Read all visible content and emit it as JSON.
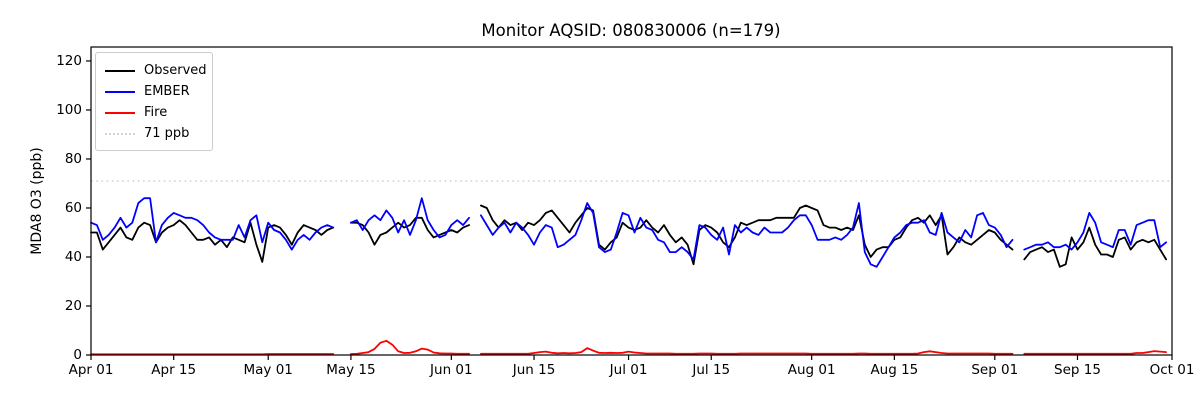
{
  "chart_data": {
    "type": "line",
    "title": "Monitor AQSID: 080830006 (n=179)",
    "xlabel": "",
    "ylabel": "MDA8 O3 (ppb)",
    "ylim": [
      0,
      125.7
    ],
    "yticks": [
      0,
      20,
      40,
      60,
      80,
      100,
      120
    ],
    "xticks": [
      {
        "label": "Apr 01",
        "day": 0
      },
      {
        "label": "Apr 15",
        "day": 14
      },
      {
        "label": "May 01",
        "day": 30
      },
      {
        "label": "May 15",
        "day": 44
      },
      {
        "label": "Jun 01",
        "day": 61
      },
      {
        "label": "Jun 15",
        "day": 75
      },
      {
        "label": "Jul 01",
        "day": 91
      },
      {
        "label": "Jul 15",
        "day": 105
      },
      {
        "label": "Aug 01",
        "day": 122
      },
      {
        "label": "Aug 15",
        "day": 136
      },
      {
        "label": "Sep 01",
        "day": 153
      },
      {
        "label": "Sep 15",
        "day": 167
      },
      {
        "label": "Oct 01",
        "day": 183
      }
    ],
    "x_start": "Apr 01",
    "x_end": "Oct 01",
    "frequency": "daily",
    "n_days": 183,
    "grid": false,
    "legend_position": "upper left",
    "threshold": {
      "label": "71 ppb",
      "value": 71,
      "color": "#d3d3d3",
      "style": "dotted"
    },
    "series": [
      {
        "name": "Observed",
        "color": "#000000",
        "values": [
          50,
          50,
          43,
          46,
          49,
          52,
          48,
          47,
          52,
          54,
          53,
          46,
          50,
          52,
          53,
          55,
          53,
          50,
          47,
          47,
          48,
          45,
          47,
          44,
          48,
          47,
          46,
          54,
          45,
          38,
          52,
          53,
          52,
          49,
          45,
          50,
          53,
          52,
          51,
          49,
          51,
          52,
          null,
          null,
          54,
          54,
          53,
          50,
          45,
          49,
          50,
          52,
          54,
          52,
          53,
          56,
          56,
          51,
          48,
          49,
          50,
          51,
          50,
          52,
          53,
          null,
          61,
          60,
          55,
          52,
          55,
          53,
          54,
          51,
          54,
          53,
          55,
          58,
          59,
          56,
          53,
          50,
          54,
          57,
          60,
          59,
          45,
          43,
          46,
          48,
          54,
          52,
          51,
          52,
          55,
          52,
          50,
          53,
          49,
          46,
          48,
          45,
          37,
          51,
          53,
          52,
          50,
          46,
          44,
          48,
          54,
          53,
          54,
          55,
          55,
          55,
          56,
          56,
          56,
          56,
          60,
          61,
          60,
          59,
          53,
          52,
          52,
          51,
          52,
          51,
          57,
          45,
          40,
          43,
          44,
          44,
          47,
          48,
          52,
          55,
          56,
          54,
          57,
          53,
          57,
          41,
          44,
          48,
          46,
          45,
          47,
          49,
          51,
          50,
          47,
          45,
          43,
          null,
          39,
          42,
          43,
          44,
          42,
          43,
          36,
          37,
          48,
          43,
          46,
          52,
          45,
          41,
          41,
          40,
          47,
          48,
          43,
          46,
          47,
          46,
          47,
          43,
          39
        ]
      },
      {
        "name": "EMBER",
        "color": "#0000ff",
        "values": [
          54,
          53,
          47,
          49,
          52,
          56,
          52,
          54,
          62,
          64,
          64,
          46,
          53,
          56,
          58,
          57,
          56,
          56,
          55,
          53,
          50,
          48,
          47,
          47,
          47,
          53,
          48,
          55,
          57,
          46,
          54,
          51,
          50,
          47,
          43,
          47,
          49,
          47,
          50,
          52,
          53,
          52,
          null,
          null,
          54,
          55,
          51,
          55,
          57,
          55,
          59,
          56,
          50,
          55,
          49,
          55,
          64,
          55,
          51,
          48,
          49,
          53,
          55,
          53,
          56,
          null,
          57,
          53,
          49,
          52,
          54,
          50,
          54,
          52,
          49,
          45,
          50,
          53,
          52,
          44,
          45,
          47,
          49,
          55,
          62,
          58,
          44,
          42,
          43,
          50,
          58,
          57,
          50,
          56,
          52,
          51,
          47,
          46,
          42,
          42,
          44,
          42,
          39,
          53,
          52,
          49,
          47,
          52,
          41,
          53,
          50,
          52,
          50,
          49,
          52,
          50,
          50,
          50,
          52,
          55,
          57,
          57,
          53,
          47,
          47,
          47,
          48,
          47,
          49,
          52,
          62,
          42,
          37,
          36,
          40,
          44,
          48,
          50,
          53,
          54,
          54,
          55,
          50,
          49,
          58,
          50,
          48,
          46,
          51,
          48,
          57,
          58,
          53,
          52,
          49,
          44,
          47,
          null,
          43,
          44,
          45,
          45,
          46,
          44,
          44,
          45,
          43,
          46,
          50,
          58,
          54,
          46,
          45,
          44,
          51,
          51,
          45,
          53,
          54,
          55,
          55,
          44,
          46
        ]
      },
      {
        "name": "Fire",
        "color": "#ff0000",
        "values": [
          0.3,
          0.3,
          0.3,
          0.3,
          0.3,
          0.3,
          0.3,
          0.3,
          0.3,
          0.3,
          0.3,
          0.3,
          0.3,
          0.3,
          0.3,
          0.3,
          0.3,
          0.3,
          0.3,
          0.3,
          0.3,
          0.3,
          0.3,
          0.3,
          0.3,
          0.3,
          0.3,
          0.3,
          0.3,
          0.3,
          0.4,
          0.4,
          0.4,
          0.4,
          0.4,
          0.4,
          0.4,
          0.4,
          0.4,
          0.4,
          0.4,
          0.4,
          null,
          null,
          0.4,
          0.5,
          0.8,
          1.2,
          2.5,
          5.0,
          5.8,
          4.2,
          1.5,
          0.8,
          0.9,
          1.5,
          2.6,
          2.2,
          1.0,
          0.7,
          0.6,
          0.6,
          0.5,
          0.5,
          0.5,
          null,
          0.5,
          0.5,
          0.5,
          0.5,
          0.5,
          0.5,
          0.5,
          0.5,
          0.5,
          0.8,
          1.2,
          1.4,
          0.9,
          0.7,
          0.8,
          0.7,
          0.8,
          1.2,
          2.8,
          1.8,
          0.9,
          0.8,
          0.9,
          0.8,
          0.9,
          1.4,
          1.0,
          0.8,
          0.6,
          0.6,
          0.6,
          0.6,
          0.6,
          0.5,
          0.5,
          0.5,
          0.5,
          0.6,
          0.6,
          0.6,
          0.5,
          0.5,
          0.5,
          0.5,
          0.6,
          0.6,
          0.6,
          0.6,
          0.6,
          0.6,
          0.6,
          0.6,
          0.6,
          0.6,
          0.6,
          0.6,
          0.5,
          0.5,
          0.5,
          0.5,
          0.5,
          0.5,
          0.5,
          0.5,
          0.6,
          0.6,
          0.5,
          0.5,
          0.5,
          0.5,
          0.5,
          0.5,
          0.5,
          0.5,
          0.6,
          1.2,
          1.5,
          1.2,
          0.8,
          0.6,
          0.6,
          0.6,
          0.6,
          0.6,
          0.6,
          0.6,
          0.6,
          0.5,
          0.5,
          0.5,
          0.5,
          null,
          0.5,
          0.5,
          0.5,
          0.5,
          0.5,
          0.5,
          0.5,
          0.5,
          0.5,
          0.5,
          0.5,
          0.5,
          0.5,
          0.5,
          0.5,
          0.5,
          0.5,
          0.5,
          0.5,
          0.8,
          0.8,
          1.2,
          1.6,
          1.4,
          1.2
        ]
      }
    ]
  }
}
